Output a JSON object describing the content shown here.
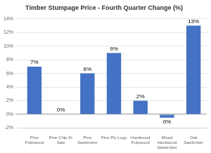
{
  "chart_data": {
    "type": "bar",
    "title": "Timber Stumpage Price - Fourth Quarter Change (%)",
    "categories": [
      "Pine\nPulpwood",
      "Pine Chip-N-\nSaw",
      "Pine\nSawtimber",
      "Pine Ply Logs",
      "Hardwood\nPulpwood",
      "Mixed\nHardwood\nSawtimber",
      "Oak\nSawtimber"
    ],
    "values": [
      7,
      0,
      6,
      9,
      2,
      -0.5,
      13
    ],
    "value_labels": [
      "7%",
      "0%",
      "6%",
      "9%",
      "2%",
      "0%",
      "13%"
    ],
    "data_labels": true,
    "color": "#4472c4",
    "ylim": [
      -2,
      14
    ],
    "yticks": [
      {
        "value": -2,
        "label": "-2%"
      },
      {
        "value": 0,
        "label": "0%"
      },
      {
        "value": 2,
        "label": "2%"
      },
      {
        "value": 4,
        "label": "4%"
      },
      {
        "value": 6,
        "label": "6%"
      },
      {
        "value": 8,
        "label": "8%"
      },
      {
        "value": 10,
        "label": "10%"
      },
      {
        "value": 12,
        "label": "12%"
      },
      {
        "value": 14,
        "label": "14%"
      }
    ],
    "grid": true
  }
}
